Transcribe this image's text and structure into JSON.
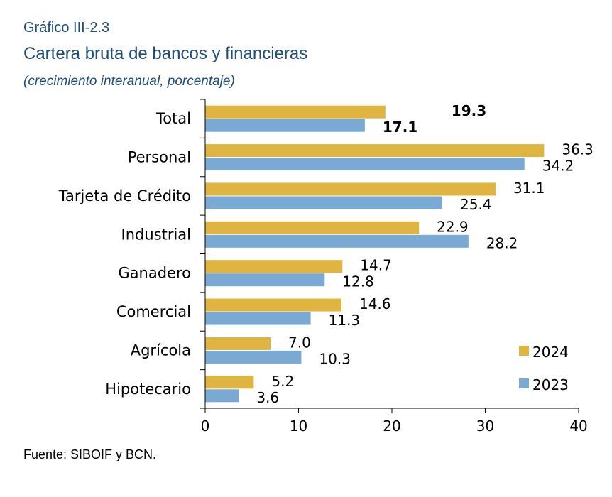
{
  "header": {
    "supertitle": "Gráfico III-2.3",
    "title": "Cartera bruta de bancos y financieras",
    "subtitle": "(crecimiento interanual, porcentaje)"
  },
  "footer": {
    "source": "Fuente: SIBOIF y BCN."
  },
  "chart_data": {
    "type": "bar",
    "orientation": "horizontal",
    "categories": [
      "Total",
      "Personal",
      "Tarjeta de Crédito",
      "Industrial",
      "Ganadero",
      "Comercial",
      "Agrícola",
      "Hipotecario"
    ],
    "series": [
      {
        "name": "2024",
        "color": "#e0b441",
        "values": [
          19.3,
          36.3,
          31.1,
          22.9,
          14.7,
          14.6,
          7.0,
          5.2
        ]
      },
      {
        "name": "2023",
        "color": "#7aaad3",
        "values": [
          17.1,
          34.2,
          25.4,
          28.2,
          12.8,
          11.3,
          10.3,
          3.6
        ]
      }
    ],
    "value_labels": [
      [
        "19.3",
        "36.3",
        "31.1",
        "22.9",
        "14.7",
        "14.6",
        "7.0",
        "5.2"
      ],
      [
        "17.1",
        "34.2",
        "25.4",
        "28.2",
        "12.8",
        "11.3",
        "10.3",
        "3.6"
      ]
    ],
    "bold_categories": [
      "Total"
    ],
    "xlim": [
      0,
      40
    ],
    "xticks": [
      0,
      10,
      20,
      30,
      40
    ],
    "xtick_labels": [
      "0",
      "10",
      "20",
      "30",
      "40"
    ],
    "legend_position": "bottom-right",
    "grid": false
  }
}
